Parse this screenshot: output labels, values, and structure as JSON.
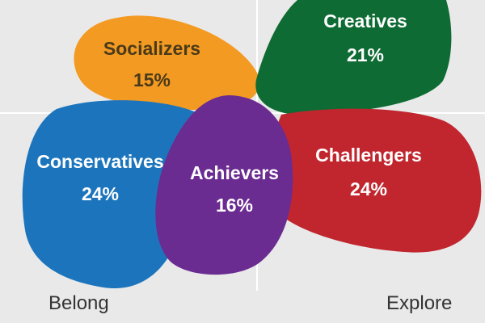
{
  "segments": [
    {
      "id": "socializers",
      "name": "Socializers",
      "share": "15%",
      "color": "#F39A22"
    },
    {
      "id": "creatives",
      "name": "Creatives",
      "share": "21%",
      "color": "#0E6B33"
    },
    {
      "id": "conservatives",
      "name": "Conservatives",
      "share": "24%",
      "color": "#1C75BC"
    },
    {
      "id": "challengers",
      "name": "Challengers",
      "share": "24%",
      "color": "#C1262E"
    },
    {
      "id": "achievers",
      "name": "Achievers",
      "share": "16%",
      "color": "#6B2C91"
    }
  ],
  "axis": {
    "left": "Belong",
    "right": "Explore"
  }
}
